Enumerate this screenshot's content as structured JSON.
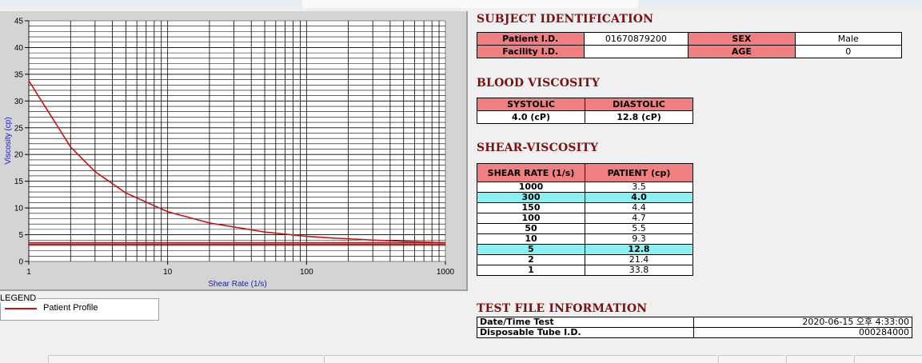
{
  "chart_data": {
    "type": "line",
    "xscale": "log",
    "xlim": [
      1,
      1000
    ],
    "ylim": [
      0,
      45
    ],
    "grid": true,
    "xlabel": "Shear Rate (1/s)",
    "ylabel": "Viscosity (cp)",
    "xticks": [
      "1",
      "10",
      "100",
      "1000"
    ],
    "yticks": [
      "0",
      "5",
      "10",
      "15",
      "20",
      "25",
      "30",
      "35",
      "40",
      "45"
    ],
    "series": [
      {
        "name": "Patient Profile",
        "x": [
          1,
          2,
          3,
          5,
          10,
          20,
          50,
          100,
          150,
          300,
          1000
        ],
        "values": [
          33.8,
          21.4,
          16.8,
          12.8,
          9.3,
          7.2,
          5.5,
          4.7,
          4.4,
          4.0,
          3.5
        ]
      },
      {
        "name": "",
        "x": [
          1,
          1000
        ],
        "values": [
          3.2,
          3.2
        ]
      },
      {
        "name": "",
        "x": [
          1,
          1000
        ],
        "values": [
          3.5,
          3.5
        ]
      }
    ],
    "legend": {
      "title": "LEGEND",
      "position": "bottom-left",
      "entries": [
        "Patient Profile"
      ]
    }
  },
  "colors": {
    "curve": "#c81414",
    "header": "#f08080",
    "highlight": "#8af0f0",
    "title": "#7a1010"
  },
  "subject": {
    "title": "SUBJECT IDENTIFICATION",
    "patient_label": "Patient I.D.",
    "patient_value": "01670879200",
    "sex_label": "SEX",
    "sex_value": "Male",
    "facility_label": "Facility I.D.",
    "facility_value": "",
    "age_label": "AGE",
    "age_value": "0"
  },
  "blood": {
    "title": "BLOOD VISCOSITY",
    "systolic_label": "SYSTOLIC",
    "diastolic_label": "DIASTOLIC",
    "systolic_value": "4.0 (cP)",
    "diastolic_value": "12.8 (cP)"
  },
  "shear": {
    "title": "SHEAR-VISCOSITY",
    "col1": "SHEAR RATE (1/s)",
    "col2": "PATIENT (cp)",
    "rows": [
      {
        "rate": "1000",
        "value": "3.5"
      },
      {
        "rate": "300",
        "value": "4.0"
      },
      {
        "rate": "150",
        "value": "4.4"
      },
      {
        "rate": "100",
        "value": "4.7"
      },
      {
        "rate": "50",
        "value": "5.5"
      },
      {
        "rate": "10",
        "value": "9.3"
      },
      {
        "rate": "5",
        "value": "12.8"
      },
      {
        "rate": "2",
        "value": "21.4"
      },
      {
        "rate": "1",
        "value": "33.8"
      }
    ]
  },
  "testfile": {
    "title": "TEST FILE INFORMATION",
    "datetime_label": "Date/Time Test",
    "datetime_value": "2020-06-15  오후 4:33:00",
    "tube_label": "Disposable Tube I.D.",
    "tube_value": "000284000"
  }
}
